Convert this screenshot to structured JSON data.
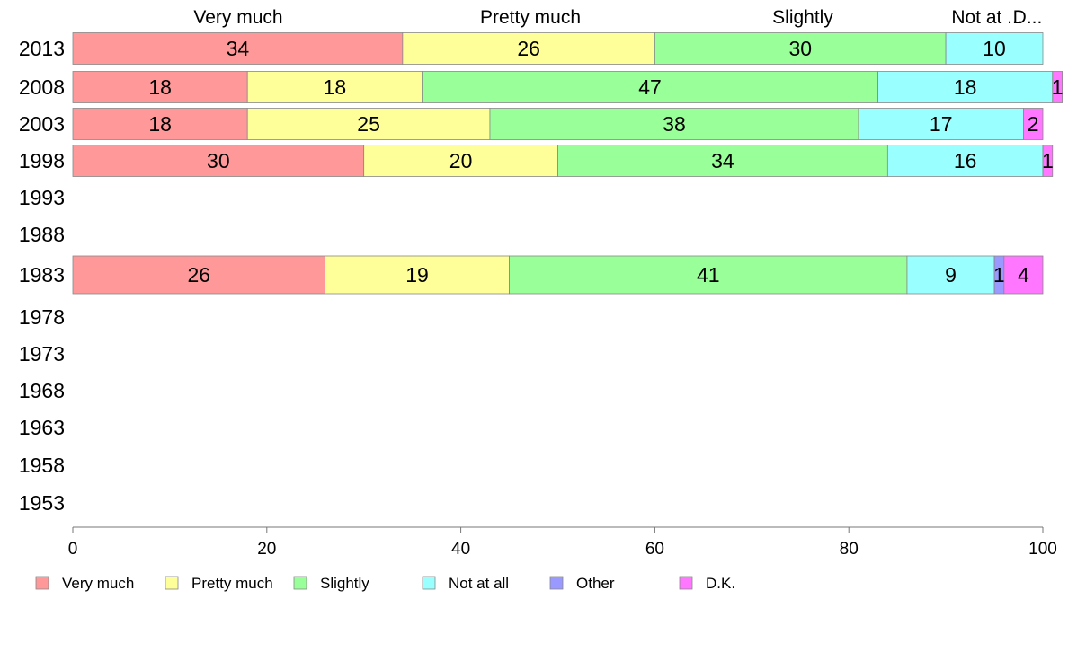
{
  "chart_data": {
    "type": "bar",
    "orientation": "horizontal",
    "stacked": true,
    "years": [
      "2013",
      "2008",
      "2003",
      "1998",
      "1993",
      "1988",
      "1983",
      "1978",
      "1973",
      "1968",
      "1963",
      "1958",
      "1953"
    ],
    "series": [
      {
        "name": "Very much",
        "color": "#ff9999",
        "values": [
          34,
          18,
          18,
          30,
          null,
          null,
          26,
          null,
          null,
          null,
          null,
          null,
          null
        ]
      },
      {
        "name": "Pretty much",
        "color": "#ffff99",
        "values": [
          26,
          18,
          25,
          20,
          null,
          null,
          19,
          null,
          null,
          null,
          null,
          null,
          null
        ]
      },
      {
        "name": "Slightly",
        "color": "#99ff99",
        "values": [
          30,
          47,
          38,
          34,
          null,
          null,
          41,
          null,
          null,
          null,
          null,
          null,
          null
        ]
      },
      {
        "name": "Not at all",
        "color": "#99ffff",
        "values": [
          10,
          18,
          17,
          16,
          null,
          null,
          9,
          null,
          null,
          null,
          null,
          null,
          null
        ]
      },
      {
        "name": "Other",
        "color": "#9999ff",
        "values": [
          0,
          0,
          0,
          0,
          null,
          null,
          1,
          null,
          null,
          null,
          null,
          null,
          null
        ]
      },
      {
        "name": "D.K.",
        "color": "#ff77ff",
        "values": [
          0,
          1,
          2,
          1,
          null,
          null,
          4,
          null,
          null,
          null,
          null,
          null,
          null
        ]
      }
    ],
    "top_labels": [
      "Very much",
      "Pretty much",
      "Slightly",
      "Not at ...",
      "D..."
    ],
    "x_ticks": [
      "0",
      "20",
      "40",
      "60",
      "80",
      "100"
    ],
    "xlim": [
      0,
      100
    ],
    "legend_position": "bottom",
    "grid": false
  }
}
